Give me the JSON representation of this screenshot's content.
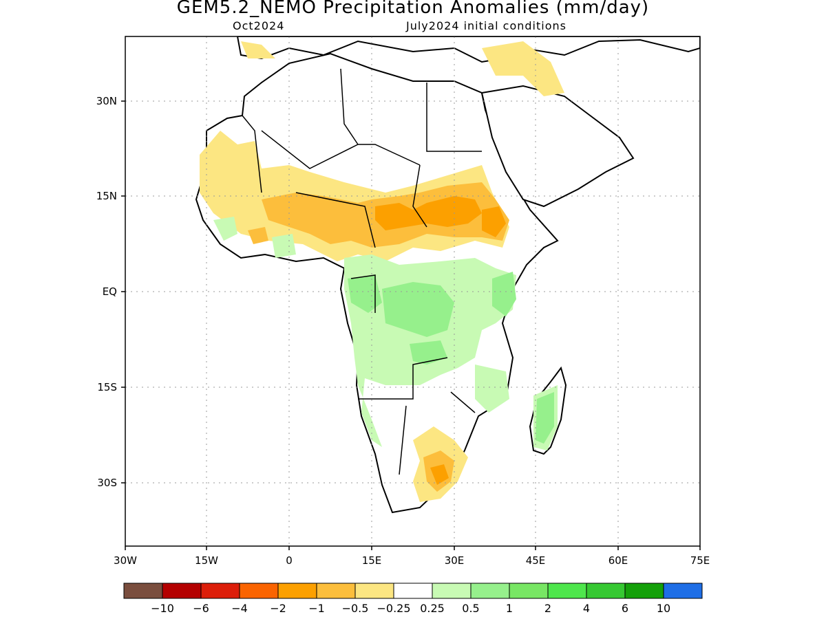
{
  "title": "GEM5.2_NEMO Precipitation Anomalies (mm/day)",
  "subtitle_left": "Oct2024",
  "subtitle_right": "July2024 initial conditions",
  "axes": {
    "x_ticks": [
      "30W",
      "15W",
      "0",
      "15E",
      "30E",
      "45E",
      "60E",
      "75E"
    ],
    "y_ticks": [
      "30N",
      "15N",
      "EQ",
      "15S",
      "30S"
    ]
  },
  "colorbar": {
    "colors": [
      "#7a4e3e",
      "#b40000",
      "#dc1e0a",
      "#fa6400",
      "#fca000",
      "#fcbe3c",
      "#fce682",
      "#ffffff",
      "#c8fab4",
      "#96f08c",
      "#78e664",
      "#4ee64c",
      "#36c832",
      "#14a00a",
      "#1e6ee6"
    ],
    "labels": [
      "-10",
      "-6",
      "-4",
      "-2",
      "-1",
      "-0.5",
      "-0.25",
      "0.25",
      "0.5",
      "1",
      "2",
      "4",
      "6",
      "10"
    ]
  }
}
